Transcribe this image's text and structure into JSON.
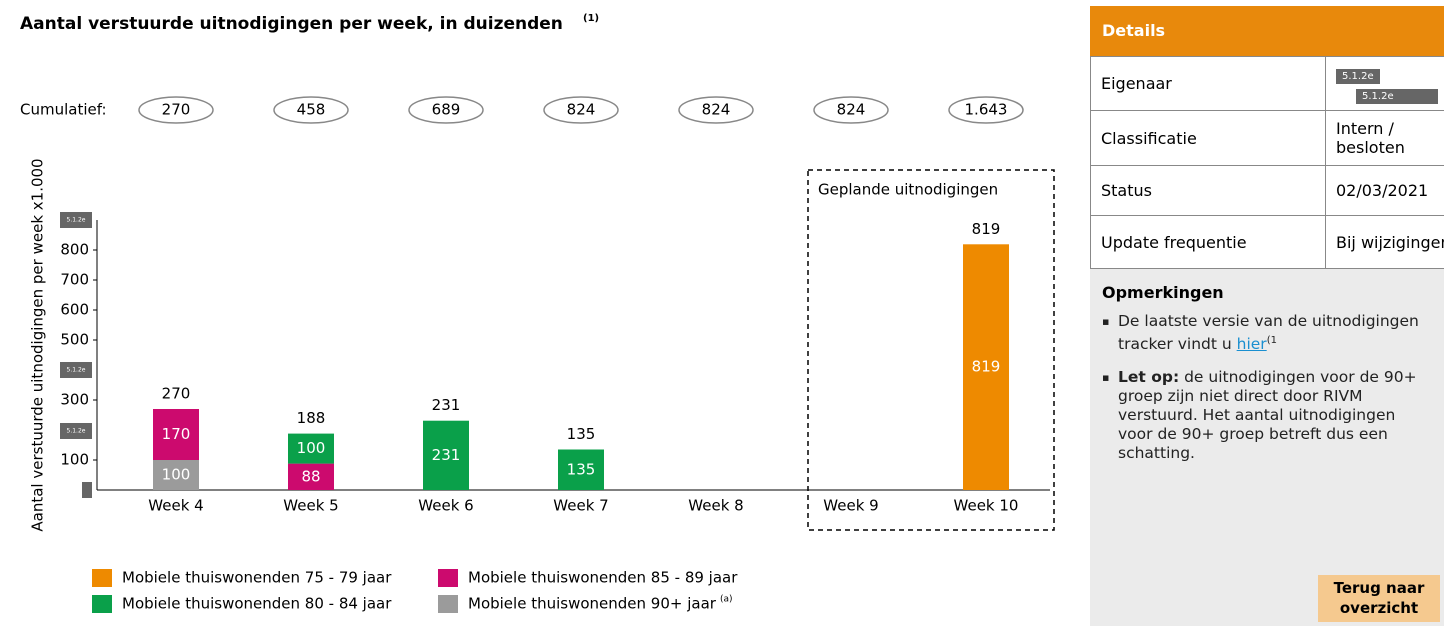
{
  "chart_data": {
    "type": "bar",
    "stacked": true,
    "title": "Aantal verstuurde uitnodigingen per week, in duizenden",
    "title_note": "(1)",
    "ylabel": "Aantal verstuurde uitnodigingen per week x1.000",
    "categories": [
      "Week 4",
      "Week 5",
      "Week 6",
      "Week 7",
      "Week 8",
      "Week 9",
      "Week 10"
    ],
    "series": [
      {
        "name": "Mobiele thuiswonenden 90+ jaar",
        "name_note": "(a)",
        "color": "#9b9b9b",
        "values": [
          100,
          null,
          null,
          null,
          null,
          null,
          null
        ]
      },
      {
        "name": "Mobiele thuiswonenden 85 - 89 jaar",
        "color": "#cc0a6e",
        "values": [
          170,
          88,
          null,
          null,
          null,
          null,
          null
        ]
      },
      {
        "name": "Mobiele thuiswonenden 80 - 84 jaar",
        "color": "#0aa04a",
        "values": [
          null,
          100,
          231,
          135,
          null,
          null,
          null
        ]
      },
      {
        "name": "Mobiele thuiswonenden 75 - 79 jaar",
        "color": "#ee8a00",
        "values": [
          null,
          null,
          null,
          null,
          null,
          null,
          819
        ]
      }
    ],
    "totals": [
      270,
      188,
      231,
      135,
      null,
      null,
      819
    ],
    "cumulative_label": "Cumulatief:",
    "cumulative": [
      270,
      458,
      689,
      824,
      824,
      824,
      1643
    ],
    "cumulative_labels": [
      "270",
      "458",
      "689",
      "824",
      "824",
      "824",
      "1.643"
    ],
    "annotation": "Geplande uitnodigingen",
    "redaction": "5.1.2e",
    "ylim": [
      0,
      900
    ],
    "yticks": [
      100,
      300,
      500,
      600,
      700,
      800
    ]
  },
  "details": {
    "title": "Details",
    "redaction": "5.1.2e",
    "rows": [
      [
        "Eigenaar",
        "5.1.2e"
      ],
      [
        "Classificatie",
        "Intern / besloten"
      ],
      [
        "Status",
        "02/03/2021"
      ],
      [
        "Update frequentie",
        "Bij wijzigingen"
      ]
    ]
  },
  "remarks": {
    "title": "Opmerkingen",
    "items": [
      {
        "text": "De laatste versie van de uitnodigingen tracker vindt u ",
        "link": "hier",
        "note": "(1"
      },
      {
        "bold": "Let op:",
        "text": " de uitnodigingen voor de 90+ groep zijn niet direct door RIVM verstuurd. Het aantal uitnodigingen voor de 90+ groep betreft dus een schatting."
      }
    ]
  },
  "button": "Terug naar overzicht"
}
